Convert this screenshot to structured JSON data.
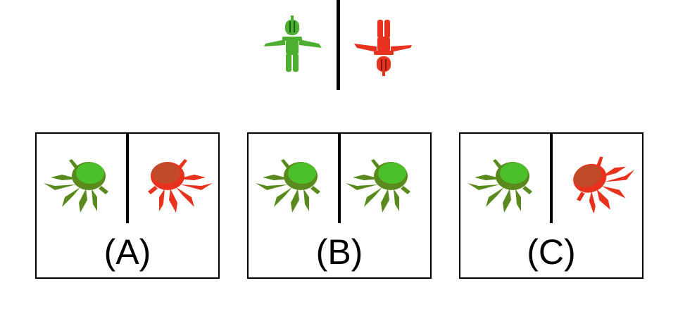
{
  "colors": {
    "green": "#4caf2f",
    "dark_green": "#5a8a1e",
    "red": "#e8321e",
    "dark_red": "#b82a1a"
  },
  "reference": {
    "left_icon": "green-humanoid-figure-upright",
    "right_icon": "red-humanoid-figure-inverted"
  },
  "options": [
    {
      "label": "(A)",
      "left_icon": "green-crab-facing-left",
      "right_icon": "red-crab-facing-right"
    },
    {
      "label": "(B)",
      "left_icon": "green-crab-facing-left",
      "right_icon": "green-crab-facing-left"
    },
    {
      "label": "(C)",
      "left_icon": "green-crab-facing-left",
      "right_icon": "red-crab-rotated"
    }
  ]
}
